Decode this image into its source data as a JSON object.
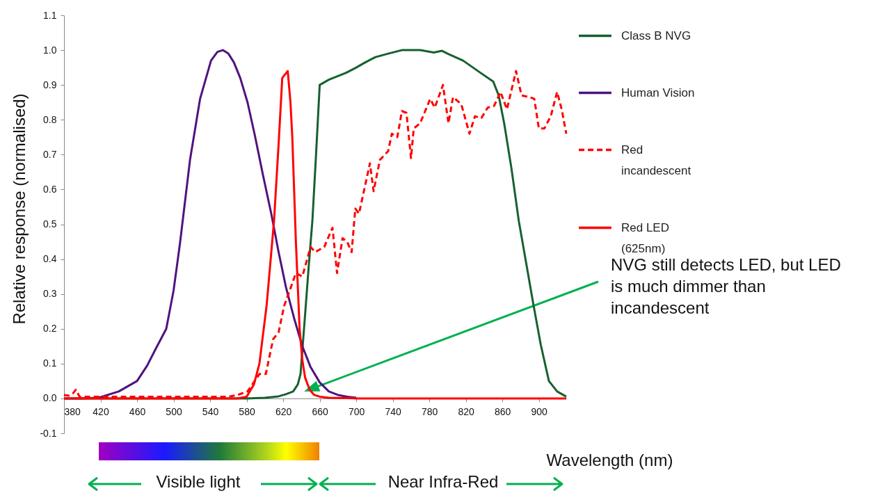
{
  "chart_data": {
    "type": "line",
    "xlabel": "Wavelength (nm)",
    "ylabel": "Relative response (normalised)",
    "xlim": [
      380,
      930
    ],
    "ylim": [
      -0.1,
      1.1
    ],
    "xticks": [
      380,
      420,
      460,
      500,
      540,
      580,
      620,
      660,
      700,
      740,
      780,
      820,
      860,
      900
    ],
    "yticks": [
      -0.1,
      {
        "value": 0,
        "label": "0.0"
      },
      0.1,
      0.2,
      0.3,
      0.4,
      0.5,
      0.6,
      0.7,
      0.8,
      0.9,
      {
        "value": 1,
        "label": "1.0"
      },
      1.1
    ],
    "legend": "right",
    "series": [
      {
        "name": "Class B NVG",
        "color": "#17602f",
        "line_style": "solid",
        "x": [
          380,
          500,
          580,
          600,
          615,
          623,
          631,
          636,
          639,
          644,
          648,
          652,
          656,
          660,
          670,
          689,
          700,
          710,
          721,
          735,
          750,
          770,
          785,
          794,
          800,
          817,
          836,
          850,
          856,
          862,
          870,
          878,
          886,
          894,
          902,
          911,
          920,
          930
        ],
        "values": [
          0,
          0,
          0,
          0.002,
          0.006,
          0.012,
          0.02,
          0.04,
          0.07,
          0.24,
          0.38,
          0.51,
          0.7,
          0.9,
          0.915,
          0.935,
          0.95,
          0.965,
          0.98,
          0.99,
          1.0,
          1.0,
          0.993,
          0.998,
          0.99,
          0.97,
          0.935,
          0.91,
          0.87,
          0.79,
          0.66,
          0.51,
          0.39,
          0.27,
          0.155,
          0.05,
          0.02,
          0.005
        ]
      },
      {
        "name": "Human Vision",
        "color": "#50127f",
        "line_style": "solid",
        "x": [
          380,
          400,
          418,
          440,
          460,
          471,
          480,
          492,
          500,
          507,
          518,
          529,
          541,
          548,
          554,
          560,
          566,
          573,
          581,
          589,
          598,
          607,
          615,
          623,
          632,
          641,
          650,
          660,
          670,
          680,
          690,
          700
        ],
        "values": [
          0,
          0,
          0.002,
          0.02,
          0.05,
          0.094,
          0.14,
          0.2,
          0.31,
          0.445,
          0.685,
          0.86,
          0.97,
          0.995,
          1.0,
          0.99,
          0.965,
          0.92,
          0.85,
          0.755,
          0.64,
          0.53,
          0.42,
          0.32,
          0.23,
          0.15,
          0.09,
          0.046,
          0.02,
          0.01,
          0.005,
          0.002
        ]
      },
      {
        "name": "Red incandescent",
        "color": "#ff0000",
        "line_style": "dashed",
        "x": [
          380,
          385,
          390,
          393,
          397,
          405,
          420,
          440,
          460,
          480,
          500,
          520,
          540,
          560,
          570,
          581,
          594,
          601,
          609,
          615,
          621,
          634,
          641,
          650,
          655,
          665,
          674,
          679,
          685,
          690,
          695,
          699,
          703,
          715,
          719,
          726,
          735,
          739,
          745,
          750,
          755,
          760,
          763,
          770,
          781,
          786,
          795,
          801,
          806,
          815,
          824,
          830,
          837,
          844,
          851,
          858,
          865,
          875,
          881,
          890,
          895,
          900,
          906,
          913,
          920,
          925,
          930
        ],
        "values": [
          0.01,
          0.008,
          0.015,
          0.025,
          0.005,
          0.005,
          0.005,
          0.005,
          0.005,
          0.005,
          0.005,
          0.005,
          0.005,
          0.005,
          0.01,
          0.02,
          0.07,
          0.07,
          0.17,
          0.19,
          0.265,
          0.36,
          0.35,
          0.435,
          0.42,
          0.435,
          0.49,
          0.36,
          0.46,
          0.45,
          0.42,
          0.545,
          0.53,
          0.675,
          0.595,
          0.685,
          0.71,
          0.76,
          0.75,
          0.825,
          0.82,
          0.69,
          0.775,
          0.79,
          0.86,
          0.835,
          0.9,
          0.79,
          0.865,
          0.845,
          0.76,
          0.81,
          0.805,
          0.835,
          0.84,
          0.88,
          0.83,
          0.94,
          0.87,
          0.865,
          0.86,
          0.775,
          0.775,
          0.81,
          0.88,
          0.83,
          0.76
        ]
      },
      {
        "name": "Red LED (625nm)",
        "color": "#ff0000",
        "line_style": "solid",
        "x": [
          380,
          500,
          570,
          580,
          588,
          594,
          602,
          610,
          615,
          619,
          622,
          625,
          628,
          630,
          634,
          638,
          641,
          644,
          649,
          654,
          660,
          670,
          700,
          800,
          930
        ],
        "values": [
          0,
          0,
          0,
          0.005,
          0.04,
          0.1,
          0.27,
          0.51,
          0.73,
          0.92,
          0.93,
          0.94,
          0.85,
          0.75,
          0.445,
          0.2,
          0.11,
          0.06,
          0.025,
          0.01,
          0.005,
          0.002,
          0,
          0,
          0
        ]
      }
    ],
    "annotations": [
      "NVG still detects LED, but LED is much dimmer than incandescent",
      "Visible light",
      "Near Infra-Red"
    ]
  }
}
